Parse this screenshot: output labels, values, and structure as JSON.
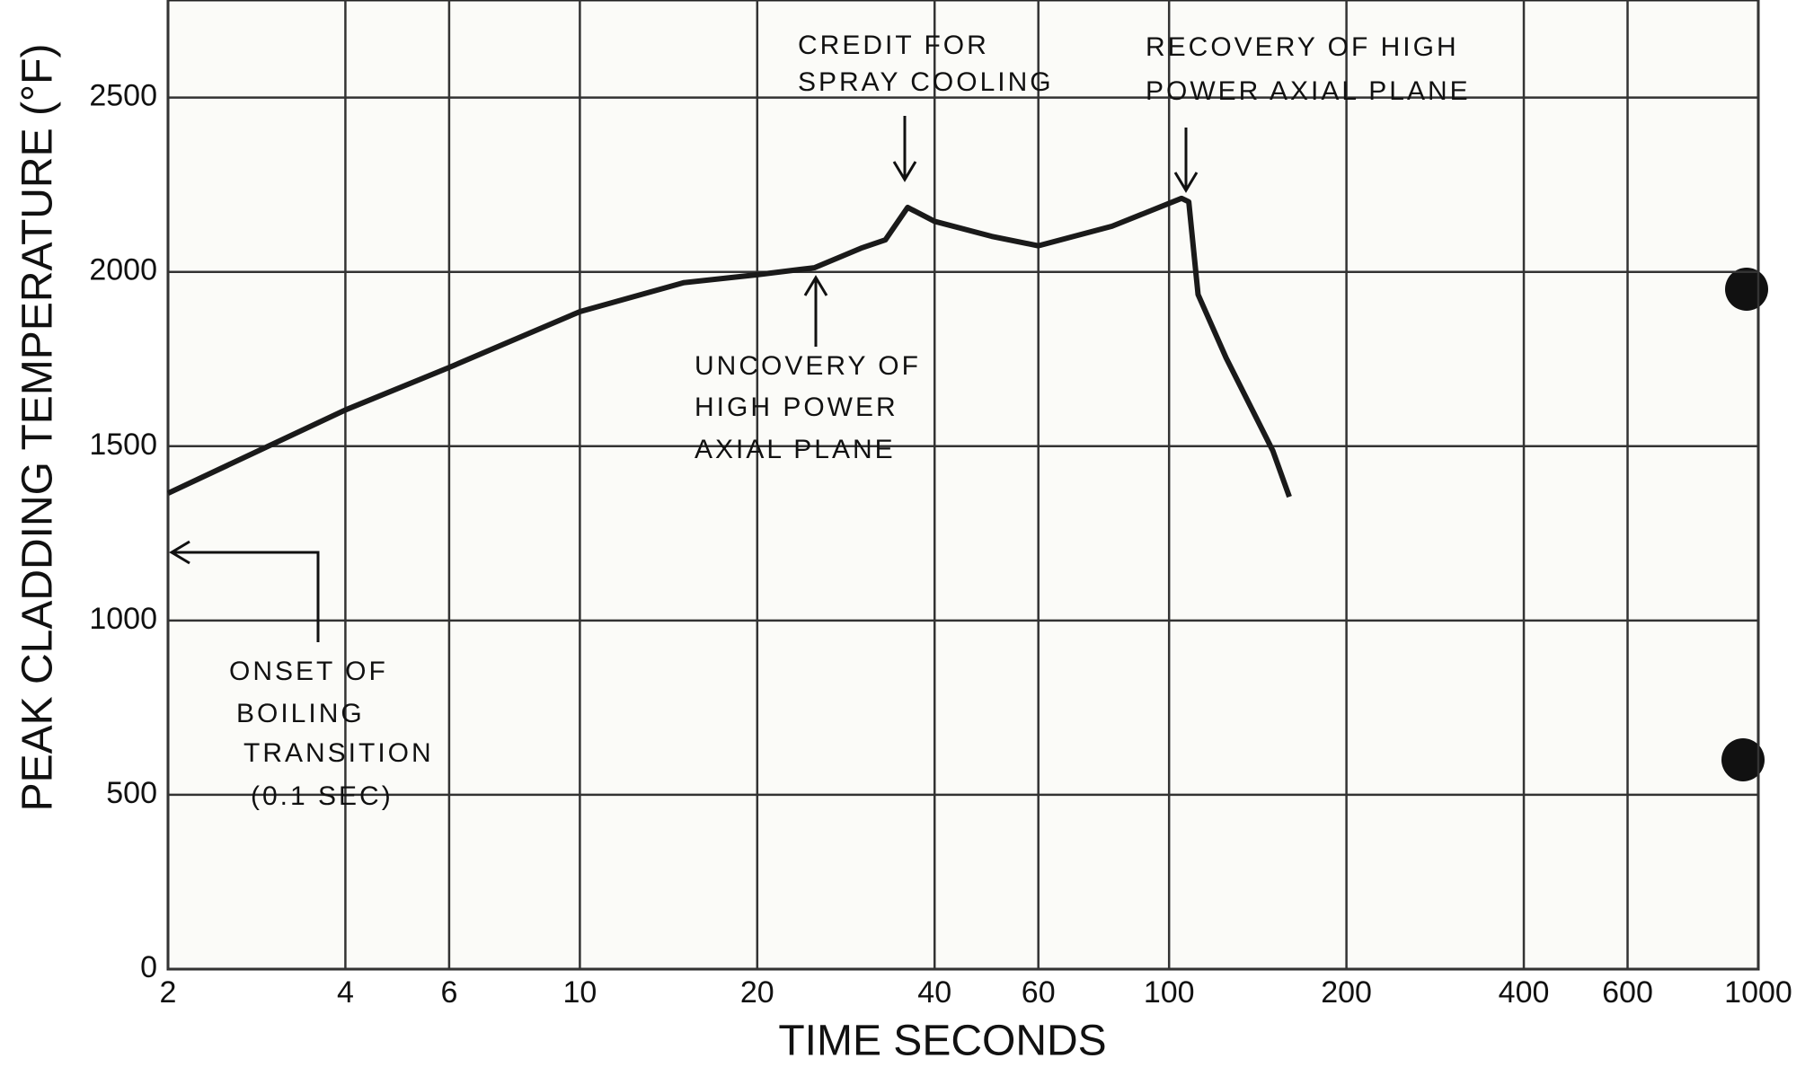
{
  "chart_data": {
    "type": "line",
    "x_label": "TIME SECONDS",
    "y_label": "PEAK CLADDING TEMPERATURE (°F)",
    "x": [
      2,
      4,
      6,
      10,
      15,
      20,
      25,
      30,
      33,
      36,
      40,
      50,
      60,
      80,
      105,
      108,
      112,
      125,
      150,
      160
    ],
    "series": [
      {
        "color": "#1a1a1a",
        "values": [
          1365,
          1604,
          1726,
          1886,
          1969,
          1992,
          2012,
          2068,
          2092,
          2185,
          2145,
          2102,
          2075,
          2131,
          2211,
          2201,
          1935,
          1753,
          1487,
          1355
        ]
      }
    ],
    "xlim": [
      2,
      1000
    ],
    "log_x": true,
    "xticks": [
      2,
      4,
      6,
      10,
      20,
      40,
      60,
      100,
      200,
      400,
      600,
      1000
    ],
    "ylim": [
      0,
      2780
    ],
    "yticks": [
      0,
      500,
      1000,
      1500,
      2000,
      2500
    ],
    "grid": true,
    "annotations": [
      [
        "CREDIT FOR",
        "SPRAY COOLING"
      ],
      [
        "RECOVERY OF HIGH",
        "POWER AXIAL PLANE"
      ],
      [
        "UNCOVERY OF",
        "HIGH POWER",
        "AXIAL PLANE"
      ],
      [
        "ONSET OF",
        "BOILING",
        "TRANSITION",
        "(0.1 SEC)"
      ]
    ]
  }
}
